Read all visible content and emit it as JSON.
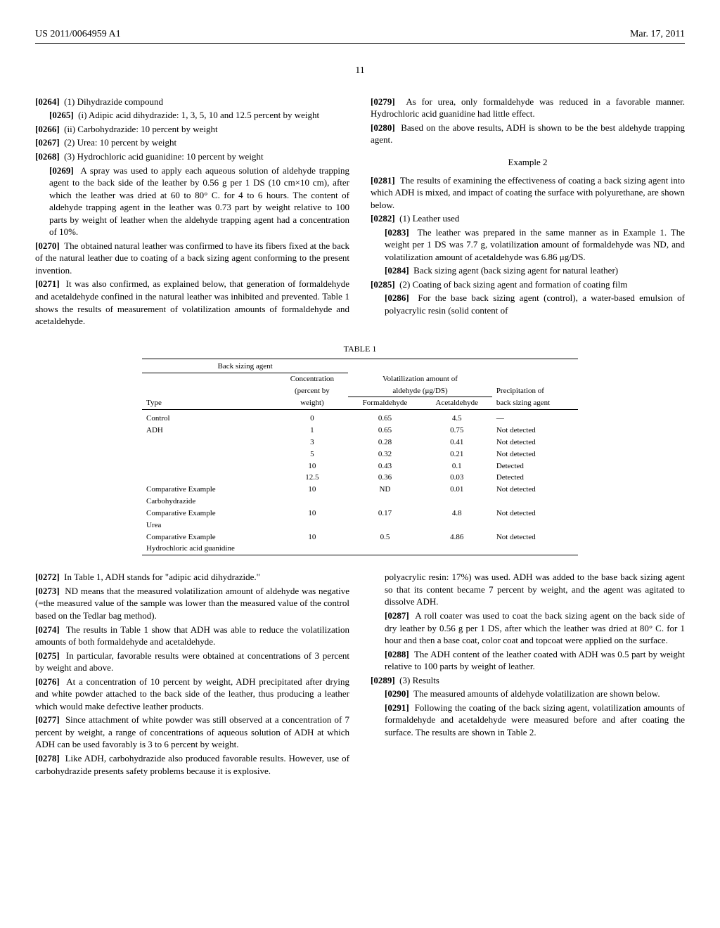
{
  "header": {
    "left": "US 2011/0064959 A1",
    "right": "Mar. 17, 2011"
  },
  "page_number": "11",
  "col1": {
    "p0264": "(1) Dihydrazide compound",
    "p0265": "(i) Adipic acid dihydrazide: 1, 3, 5, 10 and 12.5 percent by weight",
    "p0266": "(ii) Carbohydrazide: 10 percent by weight",
    "p0267": "(2) Urea: 10 percent by weight",
    "p0268": "(3) Hydrochloric acid guanidine: 10 percent by weight",
    "p0269": "A spray was used to apply each aqueous solution of aldehyde trapping agent to the back side of the leather by 0.56 g per 1 DS (10 cm×10 cm), after which the leather was dried at 60 to 80° C. for 4 to 6 hours. The content of aldehyde trapping agent in the leather was 0.73 part by weight relative to 100 parts by weight of leather when the aldehyde trapping agent had a concentration of 10%.",
    "p0270": "The obtained natural leather was confirmed to have its fibers fixed at the back of the natural leather due to coating of a back sizing agent conforming to the present invention.",
    "p0271": "It was also confirmed, as explained below, that generation of formaldehyde and acetaldehyde confined in the natural leather was inhibited and prevented. Table 1 shows the results of measurement of volatilization amounts of formaldehyde and acetaldehyde.",
    "p0272": "In Table 1, ADH stands for \"adipic acid dihydrazide.\"",
    "p0273": "ND means that the measured volatilization amount of aldehyde was negative (=the measured value of the sample was lower than the measured value of the control based on the Tedlar bag method).",
    "p0274": "The results in Table 1 show that ADH was able to reduce the volatilization amounts of both formaldehyde and acetaldehyde.",
    "p0275": "In particular, favorable results were obtained at concentrations of 3 percent by weight and above.",
    "p0276": "At a concentration of 10 percent by weight, ADH precipitated after drying and white powder attached to the back side of the leather, thus producing a leather which would make defective leather products.",
    "p0277": "Since attachment of white powder was still observed at a concentration of 7 percent by weight, a range of concentrations of aqueous solution of ADH at which ADH can be used favorably is 3 to 6 percent by weight.",
    "p0278": "Like ADH, carbohydrazide also produced favorable results. However, use of carbohydrazide presents safety problems because it is explosive."
  },
  "col2": {
    "p0279": "As for urea, only formaldehyde was reduced in a favorable manner. Hydrochloric acid guanidine had little effect.",
    "p0280": "Based on the above results, ADH is shown to be the best aldehyde trapping agent.",
    "example2": "Example 2",
    "p0281": "The results of examining the effectiveness of coating a back sizing agent into which ADH is mixed, and impact of coating the surface with polyurethane, are shown below.",
    "p0282": "(1) Leather used",
    "p0283": "The leather was prepared in the same manner as in Example 1. The weight per 1 DS was 7.7 g, volatilization amount of formaldehyde was ND, and volatilization amount of acetaldehyde was 6.86 μg/DS.",
    "p0284": "Back sizing agent (back sizing agent for natural leather)",
    "p0285": "(2) Coating of back sizing agent and formation of coating film",
    "p0286": "For the base back sizing agent (control), a water-based emulsion of polyacrylic resin (solid content of",
    "p0286b": "polyacrylic resin: 17%) was used. ADH was added to the base back sizing agent so that its content became 7 percent by weight, and the agent was agitated to dissolve ADH.",
    "p0287": "A roll coater was used to coat the back sizing agent on the back side of dry leather by 0.56 g per 1 DS, after which the leather was dried at 80° C. for 1 hour and then a base coat, color coat and topcoat were applied on the surface.",
    "p0288": "The ADH content of the leather coated with ADH was 0.5 part by weight relative to 100 parts by weight of leather.",
    "p0289": "(3) Results",
    "p0290": "The measured amounts of aldehyde volatilization are shown below.",
    "p0291": "Following the coating of the back sizing agent, volatilization amounts of formaldehyde and acetaldehyde were measured before and after coating the surface. The results are shown in Table 2."
  },
  "table1": {
    "title": "TABLE 1",
    "header_group": "Back sizing agent",
    "col_conc_top": "Concentration",
    "col_conc_mid": "(percent by",
    "col_vol_top": "Volatilization amount of",
    "col_vol_mid": "aldehyde (μg/DS)",
    "col_precip": "Precipitation of",
    "col_type": "Type",
    "col_weight": "weight)",
    "col_form": "Formaldehyde",
    "col_acet": "Acetaldehyde",
    "col_back": "back sizing agent",
    "rows": [
      {
        "type": "Control",
        "conc": "0",
        "form": "0.65",
        "acet": "4.5",
        "precip": "—"
      },
      {
        "type": "ADH",
        "conc": "1",
        "form": "0.65",
        "acet": "0.75",
        "precip": "Not detected"
      },
      {
        "type": "",
        "conc": "3",
        "form": "0.28",
        "acet": "0.41",
        "precip": "Not detected"
      },
      {
        "type": "",
        "conc": "5",
        "form": "0.32",
        "acet": "0.21",
        "precip": "Not detected"
      },
      {
        "type": "",
        "conc": "10",
        "form": "0.43",
        "acet": "0.1",
        "precip": "Detected"
      },
      {
        "type": "",
        "conc": "12.5",
        "form": "0.36",
        "acet": "0.03",
        "precip": "Detected"
      },
      {
        "type": "Comparative Example",
        "conc": "10",
        "form": "ND",
        "acet": "0.01",
        "precip": "Not detected"
      },
      {
        "type": "Carbohydrazide",
        "conc": "",
        "form": "",
        "acet": "",
        "precip": ""
      },
      {
        "type": "Comparative Example",
        "conc": "10",
        "form": "0.17",
        "acet": "4.8",
        "precip": "Not detected"
      },
      {
        "type": "Urea",
        "conc": "",
        "form": "",
        "acet": "",
        "precip": ""
      },
      {
        "type": "Comparative Example",
        "conc": "10",
        "form": "0.5",
        "acet": "4.86",
        "precip": "Not detected"
      },
      {
        "type": "Hydrochloric acid guanidine",
        "conc": "",
        "form": "",
        "acet": "",
        "precip": ""
      }
    ]
  }
}
